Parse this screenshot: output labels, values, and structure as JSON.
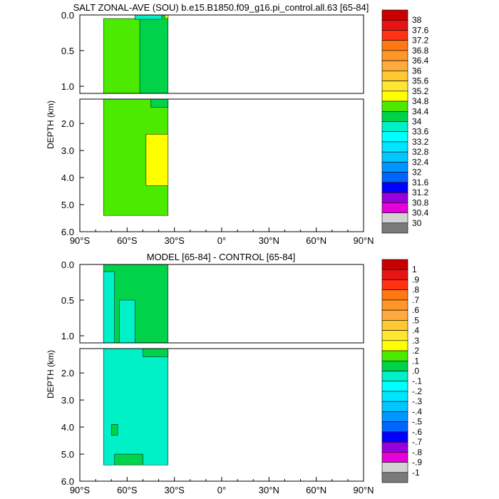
{
  "chart_data": [
    {
      "type": "heatmap",
      "title": "SALT ZONAL-AVE (SOU) b.e15.B1850.f09_g16.pi_control.all.63 [65-84]",
      "ylabel": "DEPTH (km)",
      "x_ticks": [
        "90°S",
        "60°S",
        "30°S",
        "0°",
        "30°N",
        "60°N",
        "90°N"
      ],
      "x_tick_values": [
        -90,
        -60,
        -30,
        0,
        30,
        60,
        90
      ],
      "upper_y_ticks": [
        "0.0",
        "0.5",
        "1.0"
      ],
      "upper_y_values": [
        0.0,
        0.5,
        1.0
      ],
      "lower_y_ticks": [
        "2.0",
        "3.0",
        "4.0",
        "5.0",
        "6.0"
      ],
      "lower_y_values": [
        2.0,
        3.0,
        4.0,
        5.0,
        6.0
      ],
      "xlim": [
        -90,
        90
      ],
      "upper_ylim": [
        0,
        1.1
      ],
      "lower_ylim": [
        1.1,
        6.0
      ],
      "colorbar_labels": [
        "38",
        "37.6",
        "37.2",
        "36.8",
        "36.4",
        "36",
        "35.6",
        "35.2",
        "34.8",
        "34.4",
        "34",
        "33.6",
        "33.2",
        "32.8",
        "32.4",
        "32",
        "31.6",
        "31.2",
        "30.8",
        "30.4",
        "30"
      ],
      "colorbar_colors": [
        "#c80000",
        "#e61414",
        "#ff3214",
        "#ff7814",
        "#ff9628",
        "#ffaa3c",
        "#ffc832",
        "#ffe632",
        "#ffff00",
        "#4cea00",
        "#00d24a",
        "#00f0c8",
        "#00ffff",
        "#00e6ff",
        "#00c8ff",
        "#0096ff",
        "#0064ff",
        "#0000ff",
        "#9600dc",
        "#e600dc",
        "#d2d2d2",
        "#7a7a7a"
      ],
      "regions": [
        {
          "level": "34.4-34.8",
          "color": "#4cea00",
          "lat": [
            -75,
            -47
          ],
          "depth": [
            0.05,
            1.1
          ]
        },
        {
          "level": "34-34.4",
          "color": "#00d24a",
          "lat": [
            -52,
            -34
          ],
          "depth": [
            0.0,
            1.1
          ]
        },
        {
          "level": "33.6-34",
          "color": "#00f0c8",
          "lat": [
            -55,
            -38
          ],
          "depth": [
            0.0,
            0.06
          ]
        },
        {
          "level": "34.8-35.2",
          "color": "#ffff00",
          "lat": [
            -36,
            -34
          ],
          "depth": [
            0.0,
            0.05
          ]
        },
        {
          "level": "34.4-34.8",
          "color": "#4cea00",
          "lat": [
            -75,
            -34
          ],
          "depth": [
            1.1,
            5.4
          ]
        },
        {
          "level": "34-34.4",
          "color": "#00d24a",
          "lat": [
            -45,
            -34
          ],
          "depth": [
            1.1,
            1.4
          ]
        },
        {
          "level": "34.8-35.2",
          "color": "#ffff00",
          "lat": [
            -48,
            -34
          ],
          "depth": [
            2.4,
            4.3
          ]
        }
      ]
    },
    {
      "type": "heatmap",
      "title": "MODEL [65-84] - CONTROL [65-84]",
      "ylabel": "DEPTH (km)",
      "x_ticks": [
        "90°S",
        "60°S",
        "30°S",
        "0°",
        "30°N",
        "60°N",
        "90°N"
      ],
      "x_tick_values": [
        -90,
        -60,
        -30,
        0,
        30,
        60,
        90
      ],
      "upper_y_ticks": [
        "0.0",
        "0.5",
        "1.0"
      ],
      "upper_y_values": [
        0.0,
        0.5,
        1.0
      ],
      "lower_y_ticks": [
        "2.0",
        "3.0",
        "4.0",
        "5.0",
        "6.0"
      ],
      "lower_y_values": [
        2.0,
        3.0,
        4.0,
        5.0,
        6.0
      ],
      "xlim": [
        -90,
        90
      ],
      "upper_ylim": [
        0,
        1.1
      ],
      "lower_ylim": [
        1.1,
        6.0
      ],
      "colorbar_labels": [
        "1",
        ".9",
        ".8",
        ".7",
        ".6",
        ".5",
        ".4",
        ".3",
        ".2",
        ".1",
        ".0",
        "-.1",
        "-.2",
        "-.3",
        "-.4",
        "-.5",
        "-.6",
        "-.7",
        "-.8",
        "-.9",
        "-1"
      ],
      "colorbar_colors": [
        "#c80000",
        "#e61414",
        "#ff3214",
        "#ff7814",
        "#ff9628",
        "#ffaa3c",
        "#ffc832",
        "#ffe632",
        "#ffff00",
        "#4cea00",
        "#00d24a",
        "#00f0c8",
        "#00ffff",
        "#00e6ff",
        "#00c8ff",
        "#0096ff",
        "#0064ff",
        "#0000ff",
        "#9600dc",
        "#e600dc",
        "#d2d2d2",
        "#7a7a7a"
      ],
      "regions": [
        {
          "level": "0-.1",
          "color": "#00d24a",
          "lat": [
            -75,
            -34
          ],
          "depth": [
            0.0,
            1.1
          ]
        },
        {
          "level": "-.1-0",
          "color": "#00f0c8",
          "lat": [
            -75,
            -68
          ],
          "depth": [
            0.1,
            1.1
          ]
        },
        {
          "level": "-.1-0",
          "color": "#00f0c8",
          "lat": [
            -65,
            -55
          ],
          "depth": [
            0.5,
            1.1
          ]
        },
        {
          "level": "-.1-0",
          "color": "#00f0c8",
          "lat": [
            -75,
            -34
          ],
          "depth": [
            1.1,
            5.4
          ]
        },
        {
          "level": "0-.1",
          "color": "#00d24a",
          "lat": [
            -50,
            -34
          ],
          "depth": [
            1.1,
            1.4
          ]
        },
        {
          "level": "0-.1",
          "color": "#00d24a",
          "lat": [
            -70,
            -66
          ],
          "depth": [
            3.9,
            4.3
          ]
        },
        {
          "level": "0-.1",
          "color": "#00d24a",
          "lat": [
            -68,
            -50
          ],
          "depth": [
            5.0,
            5.4
          ]
        }
      ]
    }
  ]
}
